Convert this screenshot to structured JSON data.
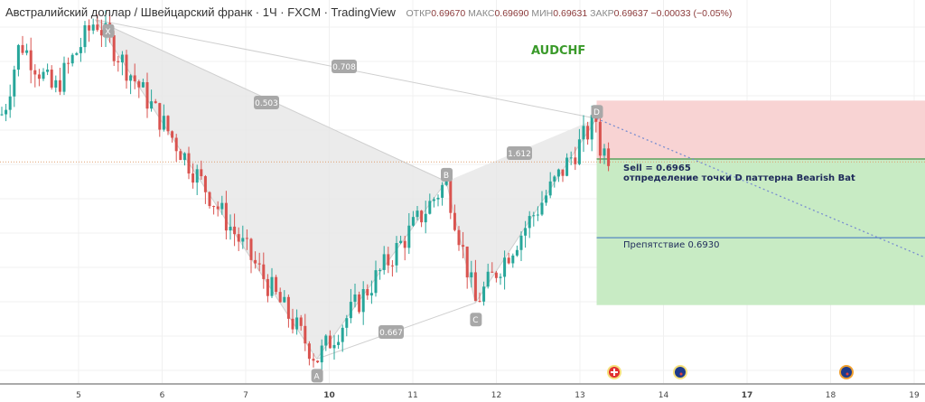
{
  "header": {
    "title": "Австралийский доллар / Швейцарский франк · 1Ч · FXCM · TradingView",
    "open_label": "ОТКР",
    "open": "0.69670",
    "high_label": "МАКС",
    "high": "0.69690",
    "low_label": "МИН",
    "low": "0.69631",
    "close_label": "ЗАКР",
    "close": "0.69637",
    "change": "−0.00033 (−0.05%)"
  },
  "symbol_label": "AUDCHF",
  "annotations": {
    "sell": "Sell = 0.6965",
    "sell_note": "отпределение точки D паттерна Bearish Bat",
    "obstacle": "Препятствие 0.6930"
  },
  "colors": {
    "up": "#26a69a",
    "down": "#d9534f",
    "pattern_fill": "#e6e6e6",
    "stop_zone": "#f8d3d3",
    "target_zone": "#c8ebc4",
    "symbol": "#3a9a2a"
  },
  "events": [
    {
      "icon": "swiss-flag-icon",
      "day": "13"
    },
    {
      "icon": "australia-flag-icon",
      "day": "14"
    },
    {
      "icon": "australia-flag-icon",
      "day": "18"
    }
  ],
  "chart_data": {
    "type": "candlestick",
    "x_ticks": [
      "5",
      "6",
      "7",
      "10",
      "11",
      "12",
      "13",
      "14",
      "17",
      "18",
      "19"
    ],
    "pattern": {
      "name": "Bearish Bat",
      "points": [
        {
          "label": "X",
          "day_index": 0.2,
          "price": 0.7027
        },
        {
          "label": "A",
          "day_index": 2.85,
          "price": 0.6876
        },
        {
          "label": "B",
          "day_index": 4.4,
          "price": 0.6955
        },
        {
          "label": "C",
          "day_index": 4.75,
          "price": 0.6901
        },
        {
          "label": "D",
          "day_index": 6.2,
          "price": 0.6983
        }
      ],
      "ratios": [
        {
          "label": "0.503"
        },
        {
          "label": "0.708"
        },
        {
          "label": "1.612"
        },
        {
          "label": "0.667"
        }
      ]
    },
    "pre_pivots": [
      {
        "day_index": -0.9,
        "price": 0.6985
      },
      {
        "day_index": -0.7,
        "price": 0.7017
      },
      {
        "day_index": -0.3,
        "price": 0.6995
      },
      {
        "day_index": 0.2,
        "price": 0.7027
      }
    ],
    "short_position": {
      "entry": 0.6965,
      "stop": 0.6991,
      "target": 0.69
    },
    "obstacle_level": 0.693,
    "last_price": 0.69637
  }
}
